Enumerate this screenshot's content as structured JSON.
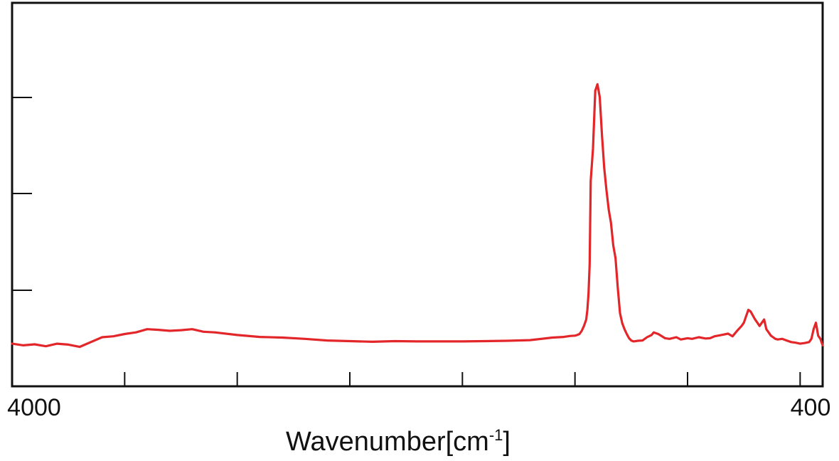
{
  "chart_data": {
    "type": "line",
    "title": "",
    "xlabel": "Wavenumber[cm",
    "xlabel_superscript": "-1",
    "xlabel_suffix": "]",
    "ylabel": "",
    "x_reversed": true,
    "xlim": [
      4000,
      400
    ],
    "ylim": [
      0,
      1
    ],
    "grid": false,
    "x_tick_labels": [
      {
        "value": 4000,
        "label": "4000"
      },
      {
        "value": 400,
        "label": "400"
      }
    ],
    "x_minor_ticks": [
      3500,
      3000,
      2500,
      2000,
      1500,
      1000,
      500
    ],
    "y_ticks": [
      0.25,
      0.5,
      0.75
    ],
    "series": [
      {
        "color": "#e3262a",
        "x": [
          4000,
          3950,
          3900,
          3850,
          3800,
          3750,
          3700,
          3650,
          3600,
          3550,
          3500,
          3450,
          3400,
          3350,
          3300,
          3250,
          3200,
          3150,
          3100,
          3000,
          2900,
          2800,
          2700,
          2600,
          2500,
          2400,
          2300,
          2200,
          2100,
          2000,
          1900,
          1800,
          1700,
          1600,
          1550,
          1520,
          1500,
          1490,
          1480,
          1470,
          1460,
          1455,
          1450,
          1445,
          1440,
          1435,
          1430,
          1420,
          1410,
          1400,
          1390,
          1380,
          1370,
          1360,
          1350,
          1340,
          1330,
          1320,
          1310,
          1300,
          1290,
          1280,
          1270,
          1260,
          1250,
          1240,
          1220,
          1200,
          1180,
          1160,
          1150,
          1130,
          1100,
          1080,
          1050,
          1030,
          1000,
          980,
          950,
          920,
          900,
          880,
          850,
          820,
          800,
          780,
          760,
          750,
          740,
          735,
          730,
          720,
          700,
          690,
          680,
          670,
          660,
          650,
          640,
          630,
          620,
          610,
          600,
          580,
          560,
          540,
          520,
          500,
          480,
          460,
          450,
          440,
          430,
          420,
          410,
          400
        ],
        "y": [
          0.055,
          0.05,
          0.053,
          0.047,
          0.055,
          0.052,
          0.045,
          0.06,
          0.075,
          0.078,
          0.085,
          0.09,
          0.1,
          0.098,
          0.095,
          0.097,
          0.1,
          0.092,
          0.09,
          0.082,
          0.076,
          0.074,
          0.07,
          0.065,
          0.063,
          0.061,
          0.063,
          0.062,
          0.062,
          0.062,
          0.063,
          0.064,
          0.066,
          0.074,
          0.076,
          0.079,
          0.08,
          0.082,
          0.085,
          0.095,
          0.11,
          0.12,
          0.13,
          0.16,
          0.21,
          0.3,
          0.56,
          0.66,
          0.84,
          0.86,
          0.82,
          0.7,
          0.6,
          0.53,
          0.47,
          0.43,
          0.36,
          0.32,
          0.23,
          0.15,
          0.118,
          0.1,
          0.085,
          0.072,
          0.065,
          0.062,
          0.064,
          0.065,
          0.075,
          0.082,
          0.09,
          0.085,
          0.072,
          0.07,
          0.075,
          0.068,
          0.072,
          0.07,
          0.075,
          0.071,
          0.072,
          0.078,
          0.082,
          0.086,
          0.078,
          0.095,
          0.11,
          0.12,
          0.14,
          0.15,
          0.16,
          0.155,
          0.13,
          0.12,
          0.11,
          0.12,
          0.13,
          0.1,
          0.09,
          0.08,
          0.075,
          0.07,
          0.068,
          0.07,
          0.065,
          0.06,
          0.058,
          0.055,
          0.057,
          0.06,
          0.07,
          0.1,
          0.12,
          0.08,
          0.07,
          0.05
        ]
      }
    ]
  }
}
